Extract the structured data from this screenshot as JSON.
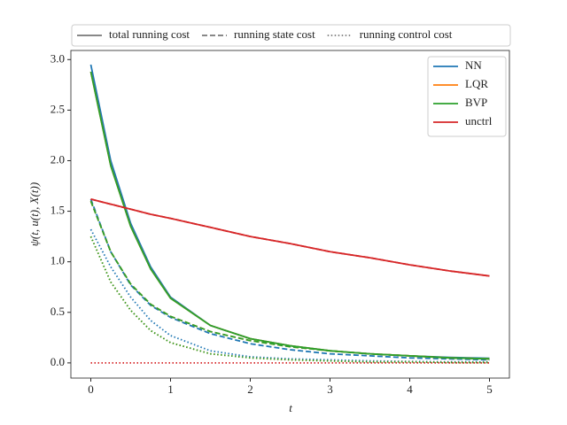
{
  "chart_data": {
    "type": "line",
    "xlabel": "t",
    "ylabel": "ψ(t, u(t), X(t))",
    "x": [
      0,
      0.25,
      0.5,
      0.75,
      1,
      1.5,
      2,
      2.5,
      3,
      3.5,
      4,
      4.5,
      5
    ],
    "xlim": [
      -0.25,
      5.25
    ],
    "xticks": [
      0,
      1,
      2,
      3,
      4,
      5
    ],
    "ylim": [
      -0.15,
      3.09
    ],
    "yticks": [
      {
        "value": 0,
        "label": "0.0"
      },
      {
        "value": 0.5,
        "label": "0.5"
      },
      {
        "value": 1,
        "label": "1.0"
      },
      {
        "value": 1.5,
        "label": "1.5"
      },
      {
        "value": 2,
        "label": "2.0"
      },
      {
        "value": 2.5,
        "label": "2.5"
      },
      {
        "value": 3,
        "label": "3.0"
      }
    ],
    "grid": false,
    "line_styles": [
      {
        "key": "total",
        "label": "total running cost",
        "linestyle": "solid"
      },
      {
        "key": "state",
        "label": "running state cost",
        "linestyle": "dashed"
      },
      {
        "key": "control",
        "label": "running control cost",
        "linestyle": "dotted"
      }
    ],
    "legend": "upper right",
    "series": [
      {
        "name": "NN",
        "color": "#1f77b4",
        "total": [
          2.95,
          2.0,
          1.38,
          0.95,
          0.65,
          0.37,
          0.24,
          0.17,
          0.12,
          0.09,
          0.07,
          0.055,
          0.045
        ],
        "state": [
          1.62,
          1.1,
          0.77,
          0.57,
          0.45,
          0.29,
          0.19,
          0.13,
          0.09,
          0.07,
          0.05,
          0.04,
          0.03
        ],
        "control": [
          1.32,
          0.95,
          0.65,
          0.42,
          0.27,
          0.12,
          0.06,
          0.04,
          0.03,
          0.02,
          0.015,
          0.01,
          0.01
        ]
      },
      {
        "name": "LQR",
        "color": "#ff7f0e",
        "total": [
          2.88,
          1.95,
          1.35,
          0.93,
          0.64,
          0.37,
          0.24,
          0.17,
          0.12,
          0.09,
          0.07,
          0.05,
          0.04
        ],
        "state": [
          1.6,
          1.1,
          0.78,
          0.58,
          0.46,
          0.31,
          0.22,
          0.16,
          0.12,
          0.09,
          0.07,
          0.05,
          0.04
        ],
        "control": [
          1.25,
          0.8,
          0.52,
          0.32,
          0.2,
          0.09,
          0.05,
          0.03,
          0.02,
          0.01,
          0.01,
          0.005,
          0.005
        ]
      },
      {
        "name": "BVP",
        "color": "#2ca02c",
        "total": [
          2.88,
          1.95,
          1.35,
          0.93,
          0.64,
          0.37,
          0.24,
          0.17,
          0.12,
          0.09,
          0.07,
          0.05,
          0.04
        ],
        "state": [
          1.6,
          1.1,
          0.78,
          0.58,
          0.46,
          0.31,
          0.22,
          0.16,
          0.12,
          0.09,
          0.07,
          0.05,
          0.04
        ],
        "control": [
          1.25,
          0.8,
          0.52,
          0.32,
          0.2,
          0.09,
          0.05,
          0.03,
          0.02,
          0.01,
          0.01,
          0.005,
          0.005
        ]
      },
      {
        "name": "unctrl",
        "color": "#d62728",
        "total": [
          1.62,
          1.57,
          1.52,
          1.47,
          1.43,
          1.34,
          1.25,
          1.18,
          1.1,
          1.04,
          0.97,
          0.91,
          0.86
        ],
        "state": [
          1.62,
          1.57,
          1.52,
          1.47,
          1.43,
          1.34,
          1.25,
          1.18,
          1.1,
          1.04,
          0.97,
          0.91,
          0.86
        ],
        "control": [
          0,
          0,
          0,
          0,
          0,
          0,
          0,
          0,
          0,
          0,
          0,
          0,
          0
        ]
      }
    ]
  }
}
